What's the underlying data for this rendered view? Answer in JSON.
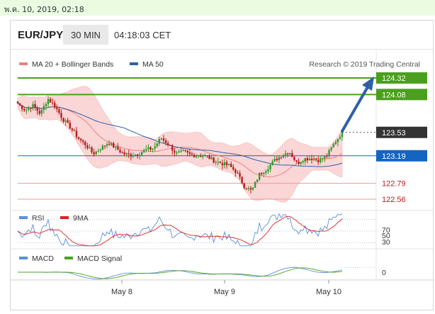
{
  "header_date": "พ.ค. 10, 2019, 02:18",
  "symbol": "EUR/JPY",
  "timeframe": "30 MIN",
  "time": "04:18:03 CET",
  "research": "Research © 2019 Trading Central",
  "legend": {
    "ma20": "MA 20 + Bollinger Bands",
    "ma50": "MA 50",
    "rsi": "RSI",
    "rsi_ma": "9MA",
    "macd": "MACD",
    "macd_signal": "MACD Signal"
  },
  "colors": {
    "up": "#2e9a2e",
    "down": "#b71c1c",
    "ma20": "#f08080",
    "band": "#fbd6d6",
    "ma50": "#2f5fa8",
    "resistance": "#4aa01e",
    "support": "#ef9a9a",
    "pivot": "#1565c0",
    "price": "#333333"
  },
  "x_labels": [
    "May 8",
    "May 9",
    "May 10"
  ],
  "chart_data": [
    {
      "type": "line",
      "title": "",
      "x": [
        "May 8",
        "May 9",
        "May 10"
      ],
      "yrange": [
        122.35,
        124.4
      ],
      "key_levels": [
        {
          "value": 124.32,
          "label": "124.32",
          "role": "resistance"
        },
        {
          "value": 124.08,
          "label": "124.08",
          "role": "resistance"
        },
        {
          "value": 123.53,
          "label": "123.53",
          "role": "last-price"
        },
        {
          "value": 123.19,
          "label": "123.19",
          "role": "pivot"
        },
        {
          "value": 122.79,
          "label": "122.79",
          "role": "support"
        },
        {
          "value": 122.56,
          "label": "122.56",
          "role": "support"
        }
      ],
      "price_anchors": [
        123.95,
        123.85,
        123.92,
        123.8,
        124.02,
        123.9,
        123.72,
        123.6,
        123.45,
        123.35,
        123.22,
        123.3,
        123.38,
        123.3,
        123.22,
        123.2,
        123.22,
        123.28,
        123.3,
        123.45,
        123.35,
        123.22,
        123.25,
        123.2,
        123.2,
        123.18,
        123.12,
        123.08,
        123.05,
        122.95,
        122.75,
        122.68,
        122.92,
        123.0,
        123.12,
        123.2,
        123.25,
        123.08,
        123.15,
        123.15,
        123.12,
        123.2,
        123.38,
        123.53
      ]
    },
    {
      "type": "line",
      "title": "RSI",
      "levels": [
        70,
        50,
        30
      ],
      "level_labels": [
        "70",
        "50",
        "30"
      ]
    },
    {
      "type": "line",
      "title": "MACD",
      "levels": [
        0
      ],
      "level_labels": [
        "0"
      ]
    }
  ]
}
